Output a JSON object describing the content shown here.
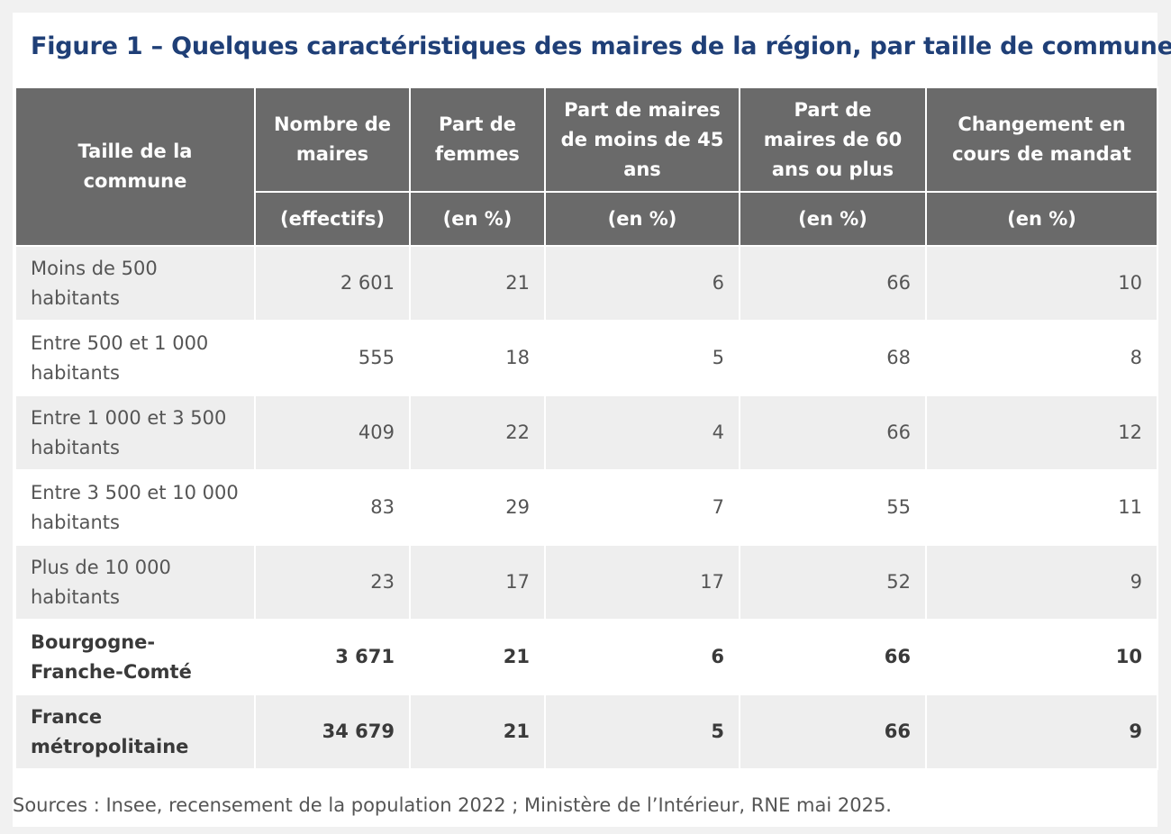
{
  "title": "Figure 1 – Quelques caractéristiques des maires de la région, par taille de commune",
  "header": {
    "row_label": "Taille de la commune",
    "columns": [
      {
        "label": "Nombre de maires",
        "unit": "(effectifs)"
      },
      {
        "label": "Part de femmes",
        "unit": "(en %)"
      },
      {
        "label": "Part de maires de moins de 45 ans",
        "unit": "(en %)"
      },
      {
        "label": "Part de maires de 60 ans ou plus",
        "unit": "(en %)"
      },
      {
        "label": "Changement en cours de mandat",
        "unit": "(en %)"
      }
    ]
  },
  "rows": [
    {
      "label": "Moins de 500 habitants",
      "values": [
        "2 601",
        "21",
        "6",
        "66",
        "10"
      ]
    },
    {
      "label": "Entre 500 et 1 000 habitants",
      "values": [
        "555",
        "18",
        "5",
        "68",
        "8"
      ]
    },
    {
      "label": "Entre 1 000 et 3 500 habitants",
      "values": [
        "409",
        "22",
        "4",
        "66",
        "12"
      ]
    },
    {
      "label": "Entre 3 500 et 10 000 habitants",
      "values": [
        "83",
        "29",
        "7",
        "55",
        "11"
      ]
    },
    {
      "label": "Plus de 10 000 habitants",
      "values": [
        "23",
        "17",
        "17",
        "52",
        "9"
      ]
    },
    {
      "label": "Bourgogne-Franche-Comté",
      "values": [
        "3 671",
        "21",
        "6",
        "66",
        "10"
      ]
    },
    {
      "label": "France métropolitaine",
      "values": [
        "34 679",
        "21",
        "5",
        "66",
        "9"
      ]
    }
  ],
  "source": "Sources : Insee, recensement de la population 2022 ; Ministère de l’Intérieur, RNE mai 2025."
}
